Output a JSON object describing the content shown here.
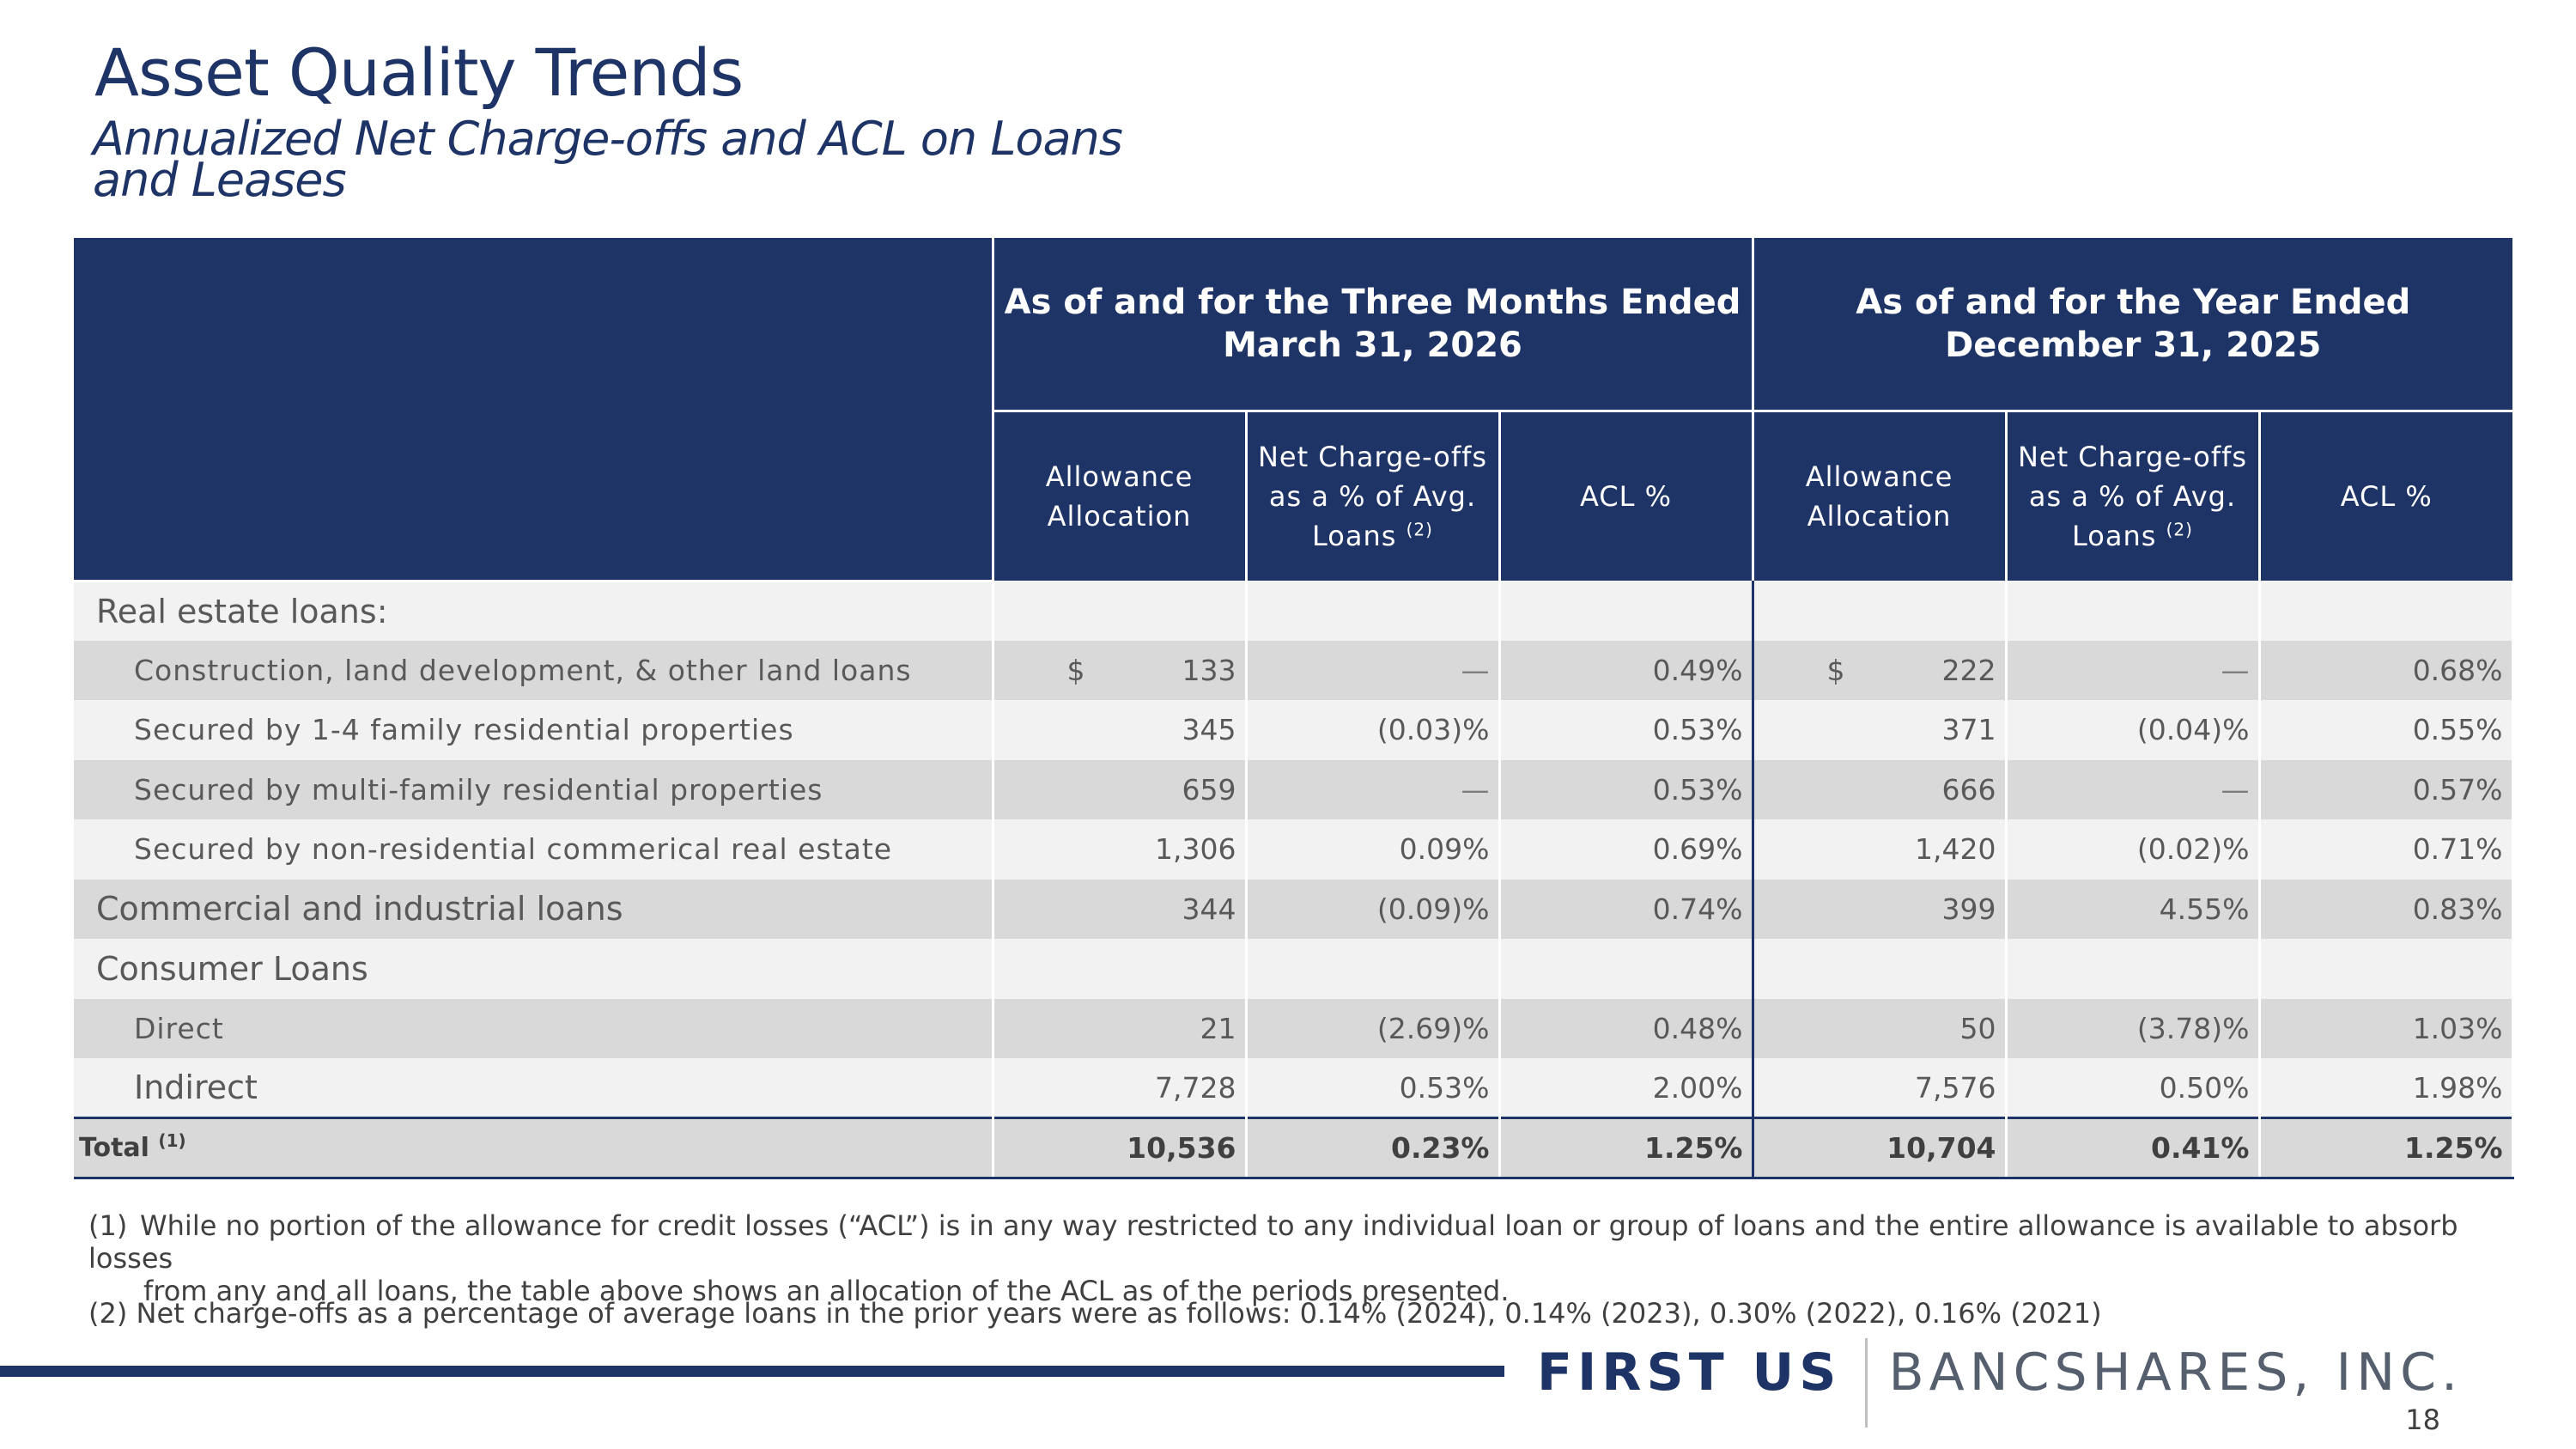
{
  "slide": {
    "title": "Asset Quality Trends",
    "subtitle": "Annualized Net Charge-offs and ACL on Loans and Leases",
    "page_number": "18"
  },
  "table": {
    "period1": "As of and for the Three Months Ended March 31, 2026",
    "period2": "As of and for the Year Ended December 31, 2025",
    "col_allowance": "Allowance Allocation",
    "col_nco": "Net Charge-offs as a % of Avg. Loans",
    "col_nco_note": "(2)",
    "col_acl": "ACL %",
    "rows": [
      {
        "label": "Real estate loans:",
        "c1": "",
        "c2": "",
        "c3": "",
        "c4": "",
        "c5": "",
        "c6": ""
      },
      {
        "label": "Construction, land development, & other land loans",
        "c1": "133",
        "c2": "—",
        "c3": "0.49%",
        "c4": "222",
        "c5": "—",
        "c6": "0.68%"
      },
      {
        "label": "Secured by 1-4 family residential properties",
        "c1": "345",
        "c2": "(0.03)%",
        "c3": "0.53%",
        "c4": "371",
        "c5": "(0.04)%",
        "c6": "0.55%"
      },
      {
        "label": "Secured by multi-family residential properties",
        "c1": "659",
        "c2": "—",
        "c3": "0.53%",
        "c4": "666",
        "c5": "—",
        "c6": "0.57%"
      },
      {
        "label": "Secured by non-residential commerical real estate",
        "c1": "1,306",
        "c2": "0.09%",
        "c3": "0.69%",
        "c4": "1,420",
        "c5": "(0.02)%",
        "c6": "0.71%"
      },
      {
        "label": "Commercial and industrial loans",
        "c1": "344",
        "c2": "(0.09)%",
        "c3": "0.74%",
        "c4": "399",
        "c5": "4.55%",
        "c6": "0.83%"
      },
      {
        "label": "Consumer Loans",
        "c1": "",
        "c2": "",
        "c3": "",
        "c4": "",
        "c5": "",
        "c6": ""
      },
      {
        "label": "Direct",
        "c1": "21",
        "c2": "(2.69)%",
        "c3": "0.48%",
        "c4": "50",
        "c5": "(3.78)%",
        "c6": "1.03%"
      },
      {
        "label": "Indirect",
        "c1": "7,728",
        "c2": "0.53%",
        "c3": "2.00%",
        "c4": "7,576",
        "c5": "0.50%",
        "c6": "1.98%"
      }
    ],
    "total": {
      "label": "Total",
      "note": "(1)",
      "c1": "10,536",
      "c2": "0.23%",
      "c3": "1.25%",
      "c4": "10,704",
      "c5": "0.41%",
      "c6": "1.25%"
    },
    "currency_symbol": "$"
  },
  "footnotes": {
    "note1_num": "(1)",
    "note1_line1": "While no portion of the allowance for credit losses (“ACL”) is in any way restricted to any individual loan or group of loans and the entire allowance is available to absorb losses",
    "note1_line2": "from any and all loans, the table above shows an allocation of the ACL as of the periods presented.",
    "note2": "(2) Net charge-offs as a percentage of average loans in the prior years were as follows: 0.14% (2024), 0.14% (2023), 0.30% (2022), 0.16% (2021)"
  },
  "logo": {
    "part1": "FIRST US",
    "part2": "BANCSHARES, INC.",
    "brand_color": "#1f3466"
  }
}
